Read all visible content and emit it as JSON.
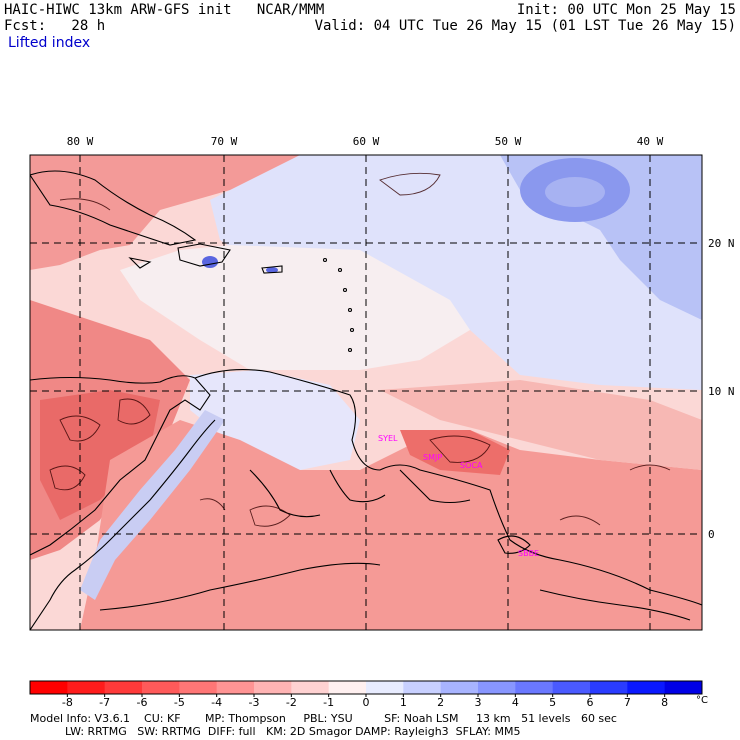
{
  "header": {
    "line1_left": "HAIC-HIWC 13km ARW-GFS init   NCAR/MMM",
    "line2_left": "Fcst:   28 h",
    "field_name": "Lifted index",
    "line1_right": "Init: 00 UTC Mon 25 May 15",
    "line2_right": "Valid: 04 UTC Tue 26 May 15 (01 LST Tue 26 May 15)"
  },
  "map": {
    "lon_labels": [
      "80 W",
      "70 W",
      "60 W",
      "50 W",
      "40 W"
    ],
    "lat_labels": [
      "20 N",
      "10 N",
      "0"
    ],
    "stations": [
      "SYEL",
      "SMJP",
      "SOCA",
      "SBBE"
    ],
    "station_color": "#ff00ff",
    "gridline_style": "dashed"
  },
  "colorbar": {
    "ticks": [
      "-8",
      "-7",
      "-6",
      "-5",
      "-4",
      "-3",
      "-2",
      "-1",
      "0",
      "1",
      "2",
      "3",
      "4",
      "5",
      "6",
      "7",
      "8"
    ],
    "unit": "°C",
    "colors": [
      "#ff0000",
      "#ff1c1c",
      "#ff3a3a",
      "#ff5a5a",
      "#ff7676",
      "#ff9494",
      "#ffb4b4",
      "#ffd2d2",
      "#fff0f0",
      "#e8ecff",
      "#c8d0ff",
      "#a8b4ff",
      "#8896ff",
      "#6a78ff",
      "#4a5aff",
      "#2a3cff",
      "#0a18ff",
      "#0000e6"
    ]
  },
  "footer": {
    "line1": "Model Info: V3.6.1    CU: KF       MP: Thompson     PBL: YSU         SF: Noah LSM     13 km   51 levels   60 sec",
    "line2": "          LW: RRTMG   SW: RRTMG  DIFF: full   KM: 2D Smagor DAMP: Rayleigh3  SFLAY: MM5"
  }
}
